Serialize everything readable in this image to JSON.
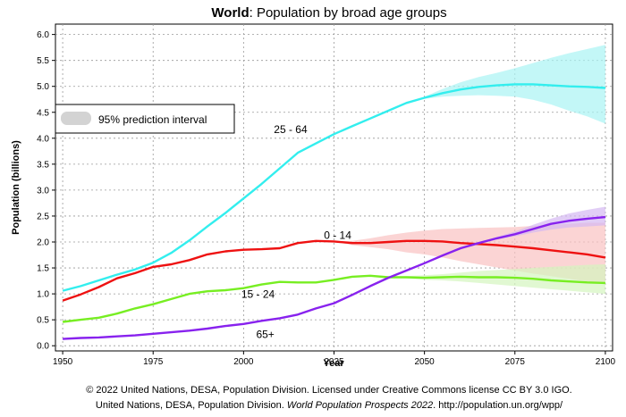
{
  "chart_data": {
    "type": "line",
    "title_bold": "World",
    "title_rest": ": Population by broad age groups",
    "xlabel": "Year",
    "ylabel": "Population (billions)",
    "xlim": [
      1948,
      2102
    ],
    "ylim": [
      -0.1,
      6.2
    ],
    "x_ticks": [
      1950,
      1975,
      2000,
      2025,
      2050,
      2075,
      2100
    ],
    "y_ticks": [
      "0.0",
      "0.5",
      "1.0",
      "1.5",
      "2.0",
      "2.5",
      "3.0",
      "3.5",
      "4.0",
      "4.5",
      "5.0",
      "5.5",
      "6.0"
    ],
    "grid": true,
    "legend": {
      "label": "95% prediction interval",
      "placement": "upper-left"
    },
    "series": [
      {
        "name": "25 - 64",
        "color": "#33eeee",
        "band_color": "#aaf4f4",
        "x": [
          1950,
          1955,
          1960,
          1965,
          1970,
          1975,
          1980,
          1985,
          1990,
          1995,
          2000,
          2005,
          2010,
          2015,
          2020,
          2025,
          2030,
          2035,
          2040,
          2045,
          2050,
          2055,
          2060,
          2065,
          2070,
          2075,
          2080,
          2085,
          2090,
          2095,
          2100
        ],
        "values": [
          1.06,
          1.15,
          1.26,
          1.37,
          1.47,
          1.6,
          1.79,
          2.03,
          2.3,
          2.56,
          2.84,
          3.12,
          3.42,
          3.72,
          3.9,
          4.08,
          4.23,
          4.38,
          4.53,
          4.68,
          4.78,
          4.87,
          4.94,
          4.99,
          5.02,
          5.04,
          5.04,
          5.02,
          5.0,
          4.99,
          4.97
        ],
        "lower": [
          null,
          null,
          null,
          null,
          null,
          null,
          null,
          null,
          null,
          null,
          null,
          null,
          null,
          null,
          null,
          null,
          null,
          null,
          null,
          null,
          4.76,
          4.8,
          4.82,
          4.83,
          4.82,
          4.8,
          4.74,
          4.65,
          4.53,
          4.42,
          4.28
        ],
        "upper": [
          null,
          null,
          null,
          null,
          null,
          null,
          null,
          null,
          null,
          null,
          null,
          null,
          null,
          null,
          null,
          null,
          null,
          null,
          null,
          null,
          4.8,
          4.95,
          5.08,
          5.18,
          5.26,
          5.35,
          5.45,
          5.55,
          5.64,
          5.72,
          5.8
        ]
      },
      {
        "name": "0 - 14",
        "color": "#ee1111",
        "band_color": "#f9c2c2",
        "x": [
          1950,
          1955,
          1960,
          1965,
          1970,
          1975,
          1980,
          1985,
          1990,
          1995,
          2000,
          2005,
          2010,
          2015,
          2020,
          2025,
          2030,
          2035,
          2040,
          2045,
          2050,
          2055,
          2060,
          2065,
          2070,
          2075,
          2080,
          2085,
          2090,
          2095,
          2100
        ],
        "values": [
          0.87,
          0.99,
          1.13,
          1.3,
          1.4,
          1.52,
          1.57,
          1.65,
          1.76,
          1.82,
          1.85,
          1.86,
          1.88,
          1.98,
          2.02,
          2.01,
          1.98,
          1.98,
          2.0,
          2.02,
          2.02,
          2.01,
          1.98,
          1.96,
          1.94,
          1.91,
          1.88,
          1.84,
          1.8,
          1.76,
          1.7
        ],
        "lower": [
          null,
          null,
          null,
          null,
          null,
          null,
          null,
          null,
          null,
          null,
          null,
          null,
          null,
          null,
          null,
          2.01,
          1.94,
          1.9,
          1.86,
          1.8,
          1.76,
          1.7,
          1.63,
          1.57,
          1.51,
          1.45,
          1.39,
          1.34,
          1.29,
          1.24,
          1.18
        ],
        "upper": [
          null,
          null,
          null,
          null,
          null,
          null,
          null,
          null,
          null,
          null,
          null,
          null,
          null,
          null,
          null,
          2.01,
          2.02,
          2.07,
          2.13,
          2.18,
          2.22,
          2.25,
          2.26,
          2.27,
          2.28,
          2.29,
          2.31,
          2.33,
          2.35,
          2.37,
          2.37
        ]
      },
      {
        "name": "15 - 24",
        "color": "#77ee22",
        "band_color": "#d4f5bf",
        "x": [
          1950,
          1955,
          1960,
          1965,
          1970,
          1975,
          1980,
          1985,
          1990,
          1995,
          2000,
          2005,
          2010,
          2015,
          2020,
          2025,
          2030,
          2035,
          2040,
          2045,
          2050,
          2055,
          2060,
          2065,
          2070,
          2075,
          2080,
          2085,
          2090,
          2095,
          2100
        ],
        "values": [
          0.46,
          0.5,
          0.54,
          0.62,
          0.72,
          0.8,
          0.9,
          1.0,
          1.05,
          1.07,
          1.11,
          1.18,
          1.23,
          1.22,
          1.22,
          1.27,
          1.33,
          1.35,
          1.32,
          1.32,
          1.31,
          1.32,
          1.33,
          1.32,
          1.32,
          1.31,
          1.29,
          1.26,
          1.24,
          1.22,
          1.21
        ],
        "lower": [
          null,
          null,
          null,
          null,
          null,
          null,
          null,
          null,
          null,
          null,
          null,
          null,
          null,
          null,
          null,
          null,
          null,
          null,
          1.32,
          1.3,
          1.27,
          1.26,
          1.24,
          1.21,
          1.18,
          1.15,
          1.12,
          1.09,
          1.06,
          1.03,
          1.0
        ],
        "upper": [
          null,
          null,
          null,
          null,
          null,
          null,
          null,
          null,
          null,
          null,
          null,
          null,
          null,
          null,
          null,
          null,
          null,
          null,
          1.32,
          1.34,
          1.36,
          1.38,
          1.41,
          1.44,
          1.46,
          1.48,
          1.5,
          1.52,
          1.54,
          1.56,
          1.57
        ]
      },
      {
        "name": "65+",
        "color": "#8822ee",
        "band_color": "#d4b8f2",
        "x": [
          1950,
          1955,
          1960,
          1965,
          1970,
          1975,
          1980,
          1985,
          1990,
          1995,
          2000,
          2005,
          2010,
          2015,
          2020,
          2025,
          2030,
          2035,
          2040,
          2045,
          2050,
          2055,
          2060,
          2065,
          2070,
          2075,
          2080,
          2085,
          2090,
          2095,
          2100
        ],
        "values": [
          0.13,
          0.15,
          0.16,
          0.18,
          0.2,
          0.23,
          0.26,
          0.29,
          0.33,
          0.38,
          0.42,
          0.48,
          0.53,
          0.6,
          0.72,
          0.82,
          0.98,
          1.15,
          1.31,
          1.45,
          1.59,
          1.74,
          1.88,
          1.98,
          2.07,
          2.15,
          2.25,
          2.35,
          2.41,
          2.45,
          2.48
        ],
        "lower": [
          null,
          null,
          null,
          null,
          null,
          null,
          null,
          null,
          null,
          null,
          null,
          null,
          null,
          null,
          null,
          null,
          null,
          null,
          null,
          null,
          null,
          null,
          null,
          1.97,
          2.05,
          2.11,
          2.18,
          2.24,
          2.28,
          2.3,
          2.32
        ],
        "upper": [
          null,
          null,
          null,
          null,
          null,
          null,
          null,
          null,
          null,
          null,
          null,
          null,
          null,
          null,
          null,
          null,
          null,
          null,
          null,
          null,
          null,
          null,
          null,
          1.99,
          2.1,
          2.2,
          2.33,
          2.45,
          2.55,
          2.62,
          2.68
        ]
      }
    ],
    "annotations": [
      {
        "text": "25 - 64",
        "x": 2013,
        "y": 4.1
      },
      {
        "text": "0 - 14",
        "x": 2026,
        "y": 2.06
      },
      {
        "text": "15 - 24",
        "x": 2004,
        "y": 0.92
      },
      {
        "text": "65+",
        "x": 2006,
        "y": 0.15
      }
    ]
  },
  "footer": {
    "line1": "© 2022 United Nations, DESA, Population Division. Licensed under Creative Commons license CC BY 3.0 IGO.",
    "line2_pre": "United Nations, DESA, Population Division. ",
    "line2_italic": "World Population Prospects 2022",
    "line2_post": ". http://population.un.org/wpp/"
  }
}
